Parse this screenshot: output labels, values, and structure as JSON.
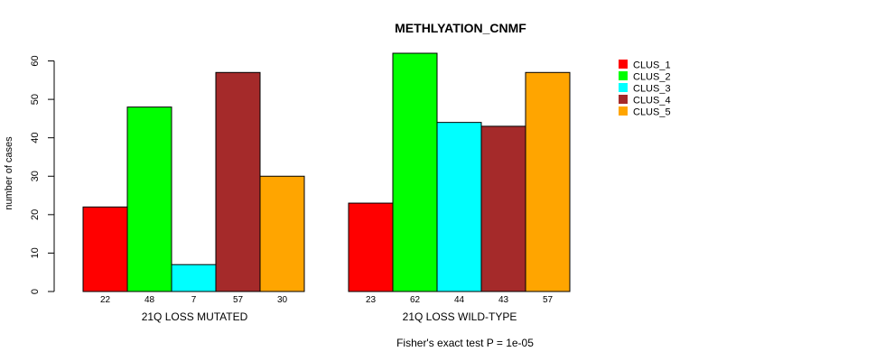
{
  "chart_data": {
    "type": "bar",
    "title": "METHLYATION_CNMF",
    "ylabel": "number of cases",
    "ylim": [
      0,
      62
    ],
    "yticks": [
      0,
      10,
      20,
      30,
      40,
      50,
      60
    ],
    "grid": false,
    "legend_position": "top-right",
    "series_names": [
      "CLUS_1",
      "CLUS_2",
      "CLUS_3",
      "CLUS_4",
      "CLUS_5"
    ],
    "colors": [
      "#ff0000",
      "#00ff00",
      "#00ffff",
      "#a52a2a",
      "#ffa500"
    ],
    "groups": [
      {
        "label": "21Q LOSS MUTATED",
        "values": [
          22,
          48,
          7,
          57,
          30
        ]
      },
      {
        "label": "21Q LOSS WILD-TYPE",
        "values": [
          23,
          62,
          44,
          43,
          57
        ]
      }
    ],
    "footnote": "Fisher's exact test P = 1e-05"
  }
}
